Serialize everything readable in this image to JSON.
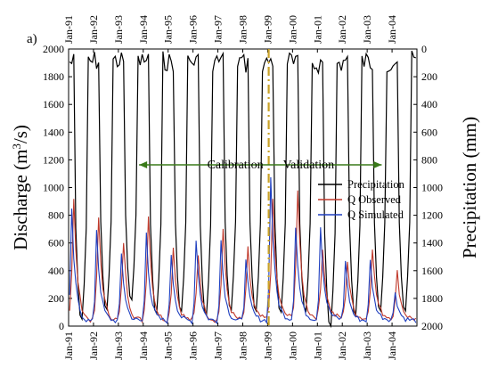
{
  "panel_label": "a)",
  "chart_data": {
    "type": "line",
    "title": "",
    "xlabel": "",
    "ylabel": "Discharge (m³/s)",
    "ylabel_parts": {
      "base": "Discharge (m",
      "sup": "3",
      "tail": "/s)"
    },
    "y2label": "Precipitation (mm)",
    "ylim": [
      0,
      2000
    ],
    "y2lim": [
      2000,
      0
    ],
    "y2_inverted": true,
    "yticks": [
      0,
      200,
      400,
      600,
      800,
      1000,
      1200,
      1400,
      1600,
      1800,
      2000
    ],
    "y2ticks": [
      0,
      200,
      400,
      600,
      800,
      1000,
      1200,
      1400,
      1600,
      1800,
      2000
    ],
    "xtick_labels": [
      "Jan-91",
      "Jan-92",
      "Jan-93",
      "Jan-94",
      "Jan-95",
      "Jan-96",
      "Jan-97",
      "Jan-98",
      "Jan-99",
      "Jan-00",
      "Jan-01",
      "Jan-02",
      "Jan-03",
      "Jan-04"
    ],
    "x_start": "Jan-91",
    "grid": false,
    "legend_position": "right",
    "series": [
      {
        "name": "Precipitation",
        "axis": "right",
        "color": "#000000",
        "peaks": [
          1950,
          1880,
          1810,
          1910,
          1890,
          1920,
          1880,
          1890,
          1900,
          1890,
          2000,
          1920,
          1890,
          1890
        ],
        "dry": [
          20,
          10,
          15,
          10,
          20,
          15,
          10,
          30,
          10,
          40,
          30,
          15,
          20,
          10
        ]
      },
      {
        "name": "Q Observed",
        "axis": "left",
        "color": "#c0392b",
        "peaks": [
          910,
          780,
          610,
          800,
          570,
          520,
          700,
          560,
          900,
          980,
          570,
          470,
          570,
          390
        ],
        "base": [
          35,
          40,
          40,
          40,
          40,
          40,
          40,
          50,
          60,
          60,
          60,
          50,
          60,
          50
        ]
      },
      {
        "name": "Q Simulated",
        "axis": "left",
        "color": "#1f3fbf",
        "peaks": [
          830,
          700,
          520,
          680,
          520,
          630,
          620,
          500,
          1080,
          720,
          720,
          480,
          470,
          250
        ],
        "base": [
          30,
          35,
          35,
          35,
          35,
          35,
          35,
          40,
          50,
          50,
          50,
          40,
          50,
          40
        ]
      }
    ],
    "annotations": {
      "calibration_label": "Calibration",
      "validation_label": "Validation",
      "split_at": "Jan-99"
    }
  },
  "colors": {
    "arrow": "#3a7a1a",
    "split_line": "#c9a227"
  }
}
